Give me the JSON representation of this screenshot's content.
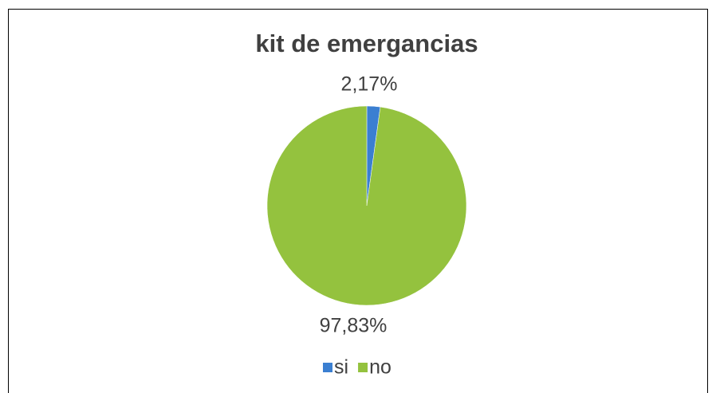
{
  "chart_data": {
    "type": "pie",
    "title": "kit de emergancias",
    "categories": [
      "si",
      "no"
    ],
    "values": [
      2.17,
      97.83
    ],
    "value_labels": [
      "2,17%",
      "97,83%"
    ],
    "colors": [
      "#3b7fd1",
      "#94c23e"
    ],
    "legend": "bottom"
  }
}
